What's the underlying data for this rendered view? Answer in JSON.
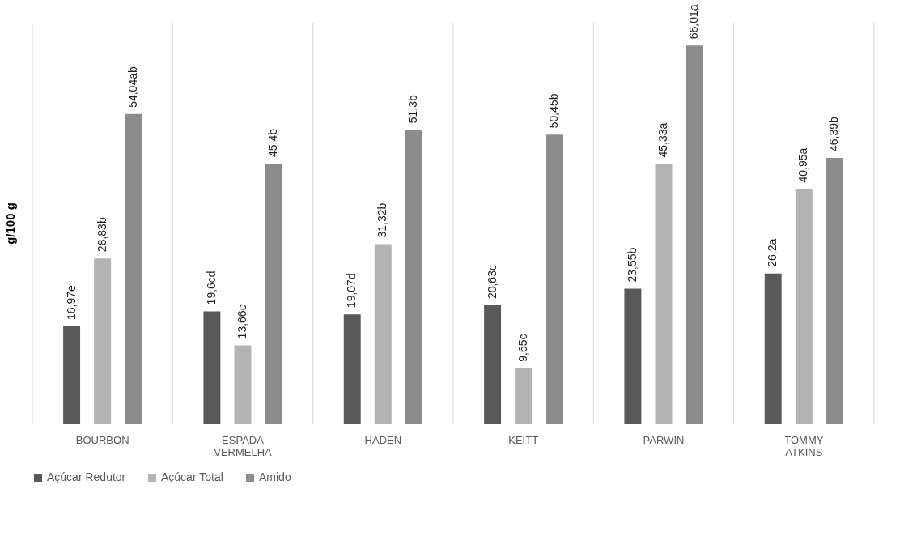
{
  "chart_data": {
    "type": "bar",
    "ylabel": "g/100 g",
    "categories": [
      "BOURBON",
      "ESPADA VERMELHA",
      "HADEN",
      "KEITT",
      "PARWIN",
      "TOMMY ATKINS"
    ],
    "series": [
      {
        "name": "Açúcar Redutor",
        "color": "#595959",
        "values": [
          16.97,
          19.6,
          19.07,
          20.63,
          23.55,
          26.2
        ],
        "value_labels": [
          "16,97e",
          "19,6cd",
          "19,07d",
          "20,63c",
          "23,55b",
          "26,2a"
        ]
      },
      {
        "name": "Açúcar Total",
        "color": "#b3b3b3",
        "values": [
          28.83,
          13.66,
          31.32,
          9.65,
          45.33,
          40.95
        ],
        "value_labels": [
          "28,83b",
          "13,66c",
          "31,32b",
          "9,65c",
          "45,33a",
          "40,95a"
        ]
      },
      {
        "name": "Amido",
        "color": "#8c8c8c",
        "values": [
          54.04,
          45.4,
          51.3,
          50.45,
          66.01,
          46.39
        ],
        "value_labels": [
          "54,04ab",
          "45,4b",
          "51,3b",
          "50,45b",
          "66,01a",
          "46,39b"
        ]
      }
    ],
    "ylim": [
      0,
      70
    ],
    "grid": "x",
    "legend": "bottom",
    "tick_labels": "x"
  }
}
